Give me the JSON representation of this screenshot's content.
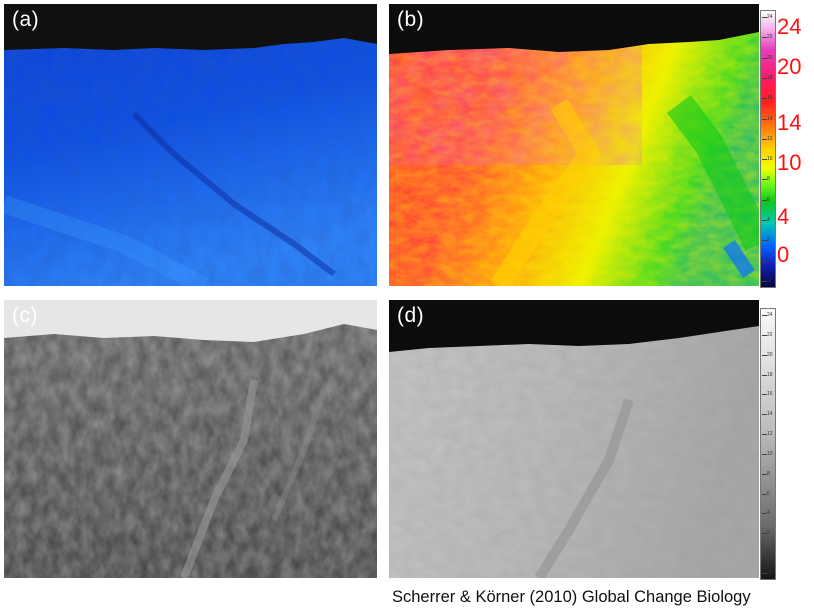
{
  "panels": {
    "a": {
      "label": "(a)",
      "description_icon": "thermal-visible-blue-hillside"
    },
    "b": {
      "label": "(b)",
      "description_icon": "thermal-false-color-hillside"
    },
    "c": {
      "label": "(c)",
      "description_icon": "grayscale-photo-hillside"
    },
    "d": {
      "label": "(d)",
      "description_icon": "grayscale-thermal-hillside"
    }
  },
  "temperature_scale": {
    "labels": [
      "24",
      "20",
      "14",
      "10",
      "4",
      "0"
    ],
    "colors": [
      "#ffffff",
      "#e43fbe",
      "#ff2020",
      "#ffd000",
      "#10c81a",
      "#0064ff",
      "#08083a"
    ]
  },
  "colorbar_ticks": [
    "24",
    "22",
    "20",
    "18",
    "16",
    "14",
    "12",
    "10",
    "8",
    "6",
    "4",
    "2",
    "0",
    "-2"
  ],
  "citation": "Scherrer & Körner (2010) Global Change Biology"
}
